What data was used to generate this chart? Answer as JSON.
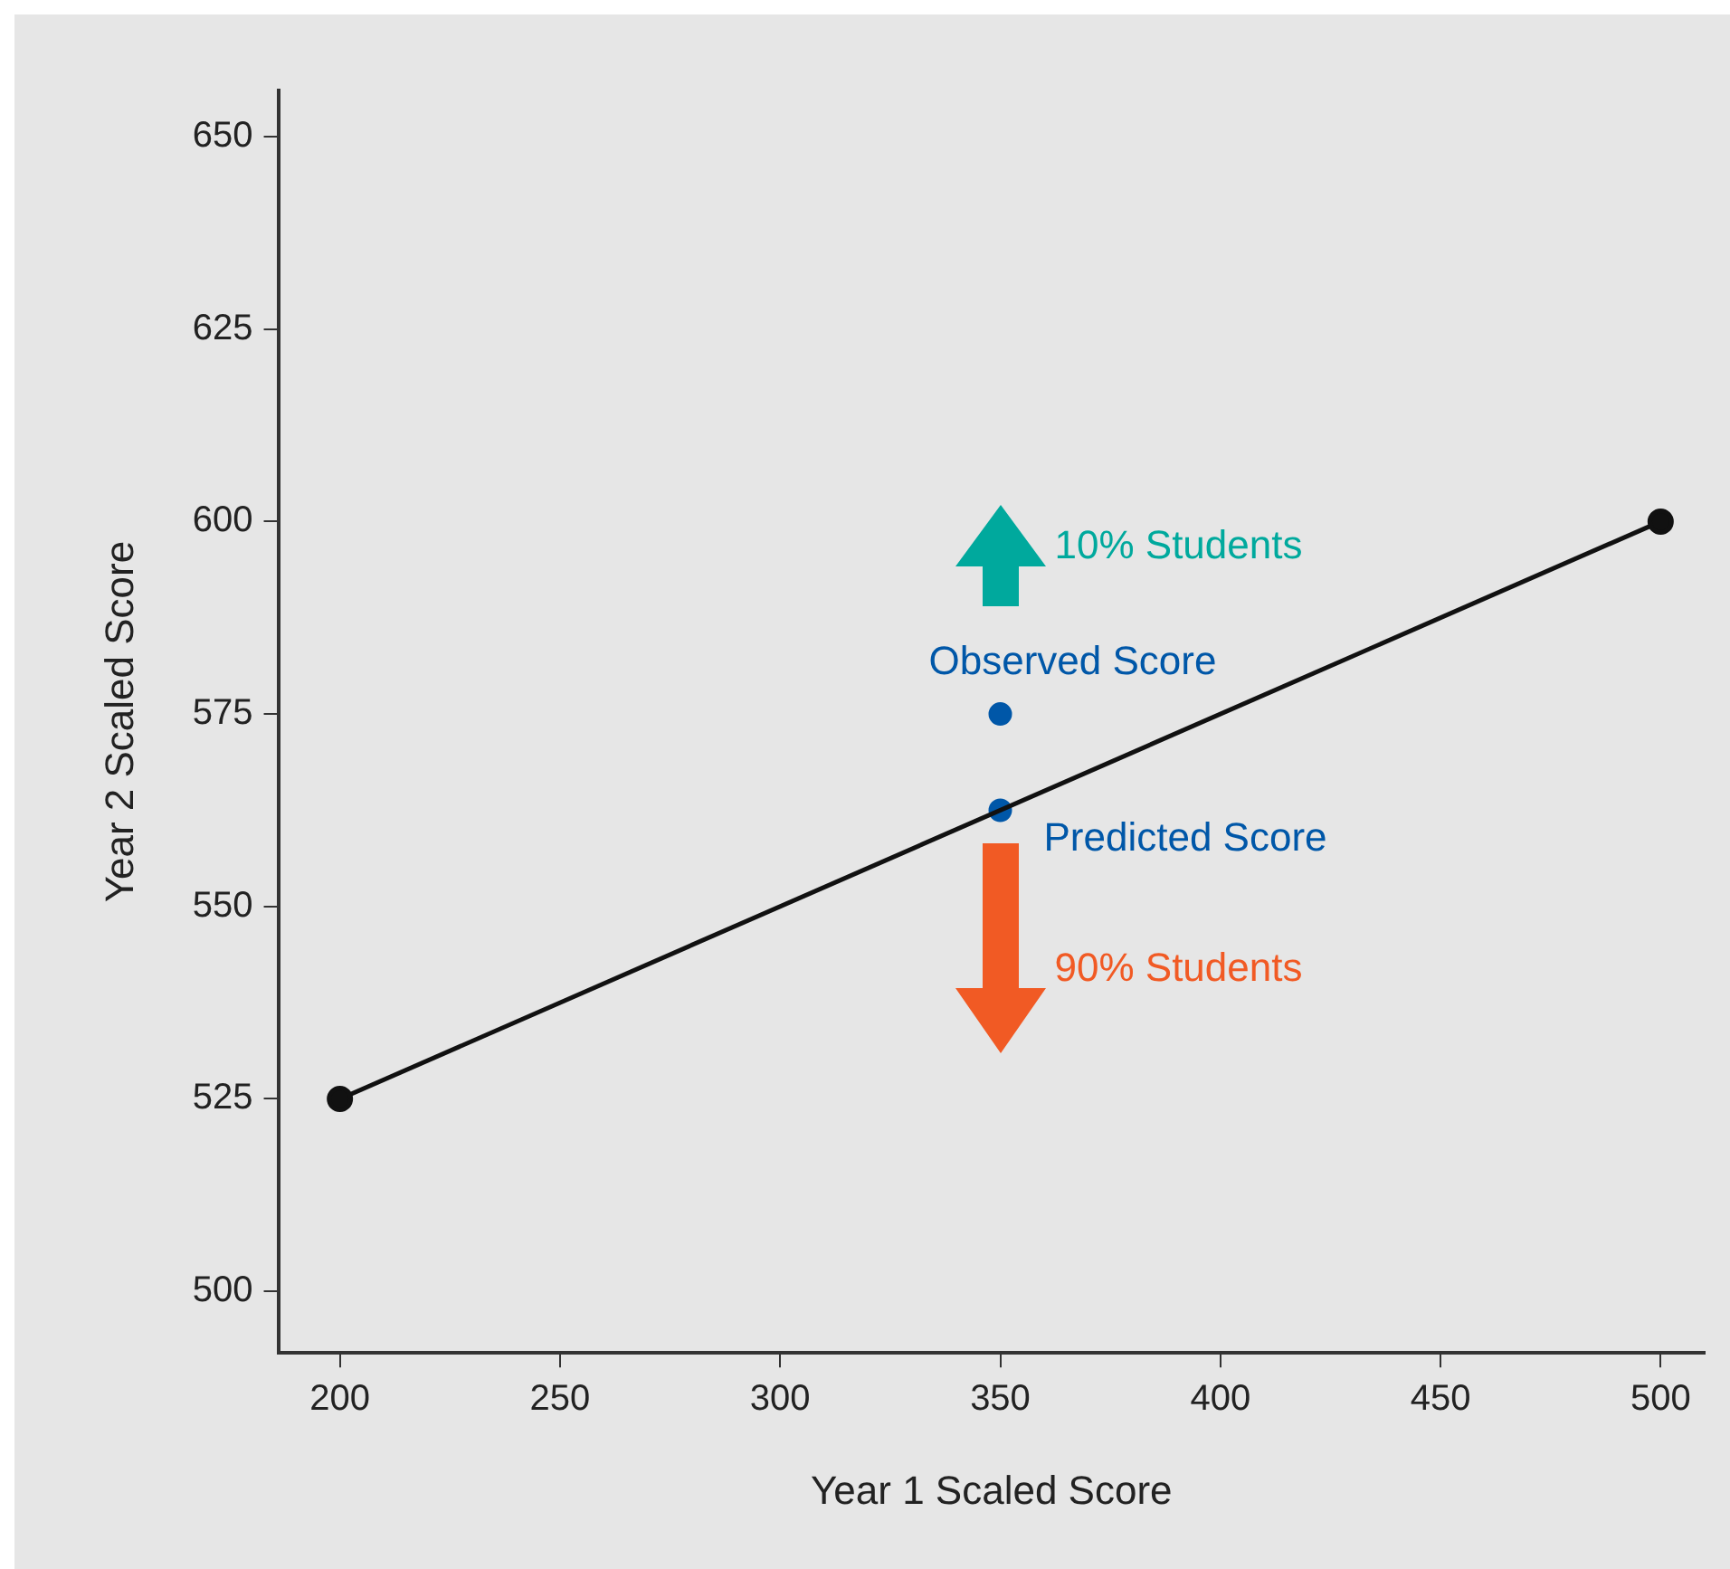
{
  "chart_data": {
    "type": "line",
    "xlabel": "Year 1 Scaled Score",
    "ylabel": "Year 2 Scaled Score",
    "xlim": [
      186,
      510
    ],
    "xticks": [
      200,
      250,
      300,
      350,
      400,
      450,
      500
    ],
    "ylim": [
      492,
      656
    ],
    "yticks": [
      500,
      525,
      550,
      575,
      600,
      625,
      650
    ],
    "series": [
      {
        "color": "#111111",
        "x": [
          200,
          500
        ],
        "values": [
          525,
          600
        ],
        "marker": "circle"
      },
      {
        "type": "scatter",
        "color": "#0057a8",
        "x": [
          350,
          350
        ],
        "values": [
          575,
          562.5
        ],
        "marker": "circle"
      }
    ],
    "annotations": [
      {
        "text": "Observed Score",
        "x": 350,
        "y": 575
      },
      {
        "text": "Predicted Score",
        "x": 350,
        "y": 562.5
      },
      "10% Students",
      "90% Students"
    ],
    "grid": false,
    "legend": false
  }
}
